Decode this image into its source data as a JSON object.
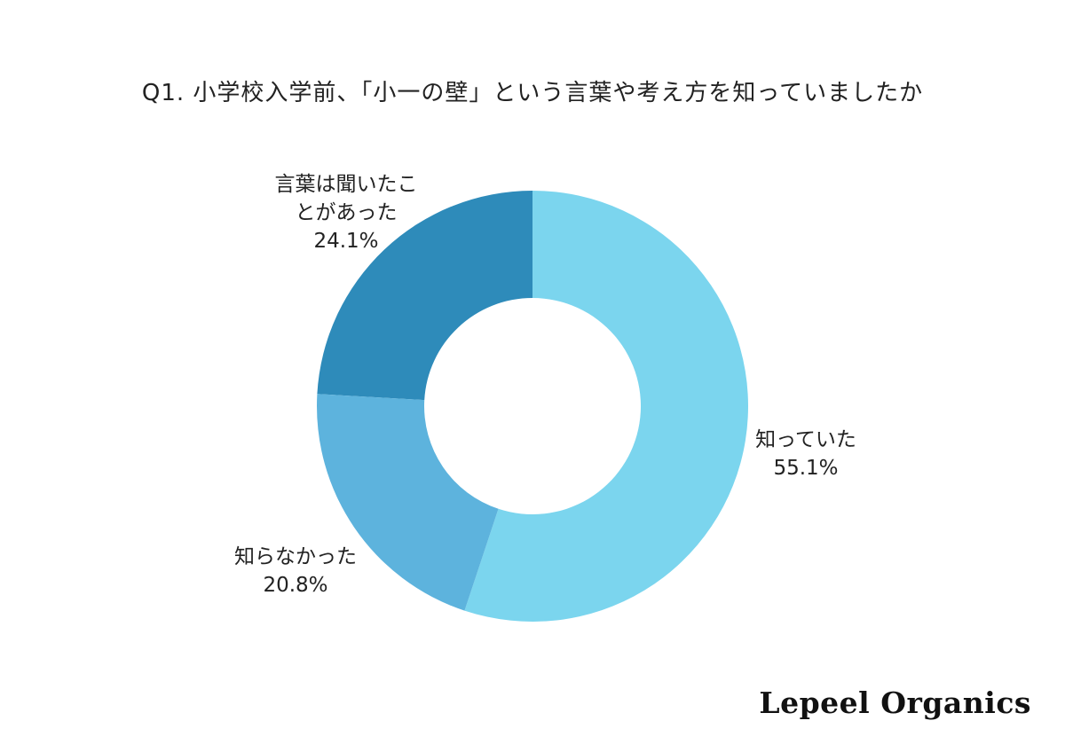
{
  "chart_data": {
    "type": "pie",
    "variant": "donut",
    "title": "Q1. 小学校入学前、「小一の壁」という言葉や考え方を知っていましたか",
    "slices": [
      {
        "label": "知っていた",
        "value": 55.1,
        "value_label": "55.1%",
        "color": "#7bd5ee"
      },
      {
        "label_lines": [
          "言葉は聞いたこ",
          "とがあった"
        ],
        "value": 24.1,
        "value_label": "24.1%",
        "color": "#2e8bba"
      },
      {
        "label": "知らなかった",
        "value": 20.8,
        "value_label": "20.8%",
        "color": "#5db3dd"
      }
    ],
    "legend": "none"
  },
  "brand": "Lepeel Organics"
}
